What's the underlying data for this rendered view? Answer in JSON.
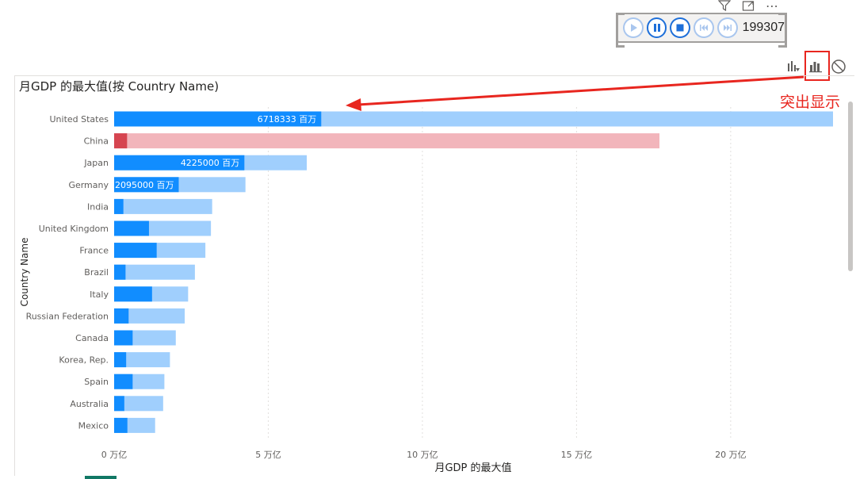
{
  "toolbar": {
    "filter_icon": "filter-icon",
    "focus_icon": "focus-mode-icon",
    "more_icon": "more-options-icon",
    "more_label": "⋯"
  },
  "play_axis": {
    "value": "199307",
    "buttons": [
      "play-icon",
      "pause-icon",
      "stop-icon",
      "previous-icon",
      "next-icon"
    ]
  },
  "visual_header": {
    "icons": [
      "drill-icon",
      "highlight-icon",
      "no-impact-icon"
    ]
  },
  "annotation": {
    "label": "突出显示",
    "color": "#e8261f"
  },
  "colors": {
    "highlight": "#118dff",
    "base": "#a0cffd",
    "highlight_alt": "#d64550",
    "base_alt": "#f2b5bb",
    "label_text": "#ffffff"
  },
  "chart_data": {
    "type": "bar",
    "orientation": "horizontal",
    "title": "月GDP 的最大值(按 Country Name)",
    "xlabel": "月GDP 的最大值",
    "ylabel": "Country Name",
    "xlim": [
      0,
      230000
    ],
    "x_ticks": [
      0,
      50000,
      100000,
      150000,
      200000
    ],
    "x_tick_labels": [
      "0 万亿",
      "5 万亿",
      "10 万亿",
      "15 万亿",
      "20 万亿"
    ],
    "grid": true,
    "categories": [
      "United States",
      "China",
      "Japan",
      "Germany",
      "India",
      "United Kingdom",
      "France",
      "Brazil",
      "Italy",
      "Russian Federation",
      "Canada",
      "Korea, Rep.",
      "Spain",
      "Australia",
      "Mexico"
    ],
    "series": [
      {
        "role": "total",
        "values": [
          233200,
          176900,
          62500,
          42600,
          31800,
          31400,
          29600,
          26200,
          24000,
          22900,
          20000,
          18100,
          16300,
          15900,
          13300
        ]
      },
      {
        "role": "highlighted",
        "values": [
          67183,
          4200,
          42250,
          20950,
          3000,
          11300,
          13800,
          3700,
          12300,
          4700,
          6000,
          3900,
          6000,
          3300,
          4300
        ]
      }
    ],
    "highlight_alt_category": "China",
    "data_labels": [
      {
        "category": "United States",
        "text": "6718333 百万"
      },
      {
        "category": "Japan",
        "text": "4225000 百万"
      },
      {
        "category": "Germany",
        "text": "2095000 百万"
      }
    ]
  }
}
